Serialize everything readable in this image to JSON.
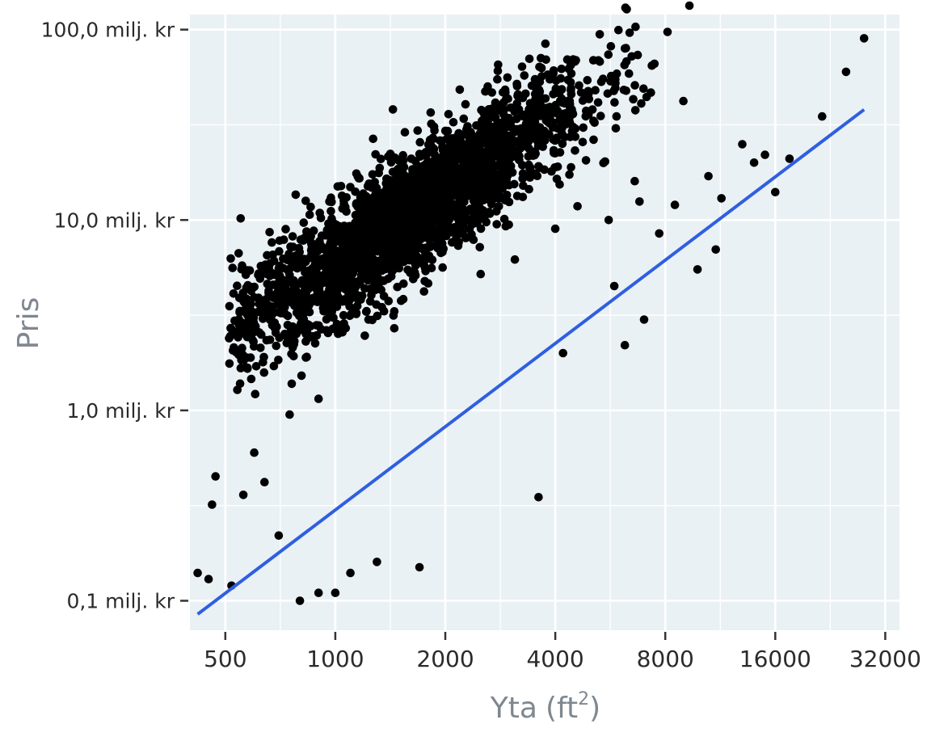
{
  "chart_data": {
    "type": "scatter",
    "title": "",
    "xlabel": "Yta",
    "xlabel_unit": "(ft",
    "xlabel_unit_sup": "2",
    "xlabel_unit_close": ")",
    "ylabel": "Pris",
    "x_scale": "log2",
    "y_scale": "log10",
    "xlim": [
      400,
      35000
    ],
    "ylim": [
      0.07,
      120
    ],
    "x_ticks": [
      500,
      1000,
      2000,
      4000,
      8000,
      16000,
      32000
    ],
    "x_tick_labels": [
      "500",
      "1000",
      "2000",
      "4000",
      "8000",
      "16000",
      "32000"
    ],
    "y_ticks": [
      0.1,
      1,
      10,
      100
    ],
    "y_tick_labels": [
      "0,1 milj. kr",
      "1,0 milj. kr",
      "10,0 milj. kr",
      "100,0 milj. kr"
    ],
    "grid": true,
    "legend": "none",
    "colors": {
      "panel": "#eaf1f5",
      "grid": "#ffffff",
      "points": "#000000",
      "fit_line": "#2f5fe0"
    },
    "fit_line": {
      "x": [
        420,
        28000
      ],
      "y": [
        0.085,
        38
      ]
    },
    "sample_points": [
      [
        420,
        0.14
      ],
      [
        450,
        0.13
      ],
      [
        470,
        0.45
      ],
      [
        460,
        0.32
      ],
      [
        520,
        0.12
      ],
      [
        560,
        0.36
      ],
      [
        600,
        0.6
      ],
      [
        640,
        0.42
      ],
      [
        700,
        0.22
      ],
      [
        760,
        1.38
      ],
      [
        900,
        1.15
      ],
      [
        750,
        0.95
      ],
      [
        1450,
        2.7
      ],
      [
        2500,
        5.2
      ],
      [
        3100,
        6.2
      ],
      [
        3600,
        0.35
      ],
      [
        4000,
        9.0
      ],
      [
        4600,
        11.8
      ],
      [
        4200,
        2.0
      ],
      [
        5600,
        10.0
      ],
      [
        6600,
        16.0
      ],
      [
        6800,
        12.5
      ],
      [
        7000,
        3.0
      ],
      [
        6200,
        2.2
      ],
      [
        5800,
        4.5
      ],
      [
        7700,
        8.5
      ],
      [
        8500,
        12.0
      ],
      [
        9800,
        5.5
      ],
      [
        10500,
        17.0
      ],
      [
        11000,
        7.0
      ],
      [
        11400,
        13.0
      ],
      [
        13000,
        25.0
      ],
      [
        14000,
        20.0
      ],
      [
        15000,
        22.0
      ],
      [
        16000,
        14.0
      ],
      [
        17500,
        21.0
      ],
      [
        21500,
        35.0
      ],
      [
        25000,
        60.0
      ],
      [
        28000,
        90.0
      ],
      [
        800,
        0.1
      ],
      [
        900,
        0.11
      ],
      [
        1000,
        0.11
      ],
      [
        1100,
        0.14
      ],
      [
        1300,
        0.16
      ],
      [
        1700,
        0.15
      ]
    ],
    "cloud": {
      "n": 2600,
      "center_log2_x": 10.65,
      "sd_log2_x": 0.78,
      "slope_log10": 0.39,
      "intercept_log10": -4.06,
      "sd_resid": 0.16
    }
  }
}
